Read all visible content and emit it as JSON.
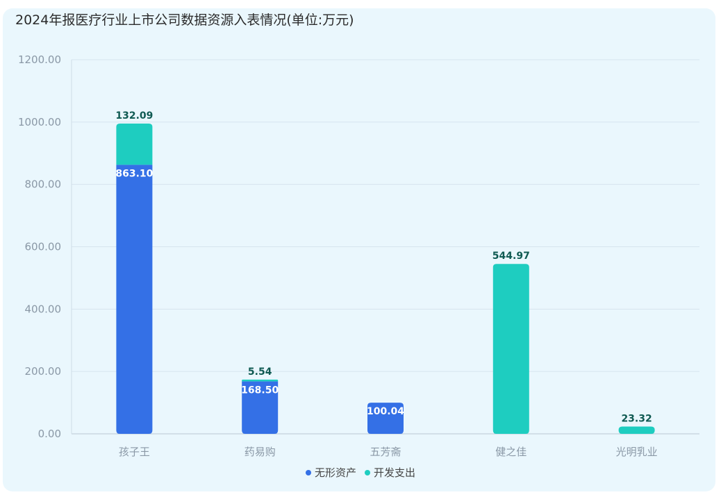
{
  "chart_data": {
    "type": "bar",
    "stacked": true,
    "title": "2024年报医疗行业上市公司数据资源入表情况(单位:万元)",
    "categories": [
      "孩子王",
      "药易购",
      "五芳斋",
      "健之佳",
      "光明乳业"
    ],
    "series": [
      {
        "name": "无形资产",
        "color": "#3470e6",
        "values": [
          863.1,
          168.5,
          100.04,
          null,
          null
        ],
        "labels": [
          "863.10",
          "168.50",
          "100.04",
          "",
          ""
        ]
      },
      {
        "name": "开发支出",
        "color": "#1ecdc0",
        "values": [
          132.09,
          5.54,
          null,
          544.97,
          23.32
        ],
        "labels": [
          "132.09",
          "5.54",
          "",
          "544.97",
          "23.32"
        ]
      }
    ],
    "ylim": [
      0,
      1200
    ],
    "yticks": [
      "0.00",
      "200.00",
      "400.00",
      "600.00",
      "800.00",
      "1000.00",
      "1200.00"
    ],
    "ytick_values": [
      0,
      200,
      400,
      600,
      800,
      1000,
      1200
    ],
    "grid": true,
    "legend_position": "bottom-center"
  }
}
